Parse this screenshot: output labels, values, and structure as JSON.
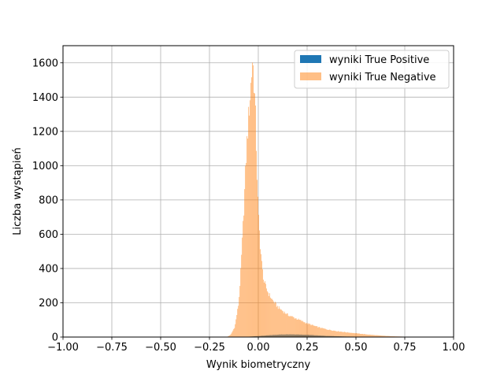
{
  "chart_data": {
    "type": "histogram",
    "xlabel": "Wynik biometryczny",
    "ylabel": "Liczba wystąpień",
    "xlim": [
      -1.0,
      1.0
    ],
    "ylim": [
      0,
      1700
    ],
    "x_ticks": [
      "−1.00",
      "−0.75",
      "−0.50",
      "−0.25",
      "0.00",
      "0.25",
      "0.50",
      "0.75",
      "1.00"
    ],
    "x_tick_values": [
      -1.0,
      -0.75,
      -0.5,
      -0.25,
      0.0,
      0.25,
      0.5,
      0.75,
      1.0
    ],
    "y_ticks": [
      "0",
      "200",
      "400",
      "600",
      "800",
      "1000",
      "1200",
      "1400",
      "1600"
    ],
    "y_tick_values": [
      0,
      200,
      400,
      600,
      800,
      1000,
      1200,
      1400,
      1600
    ],
    "grid": true,
    "legend_position": "top-right",
    "series": [
      {
        "name": "wyniki True Positive",
        "color": "#1f77b4",
        "opacity": 1.0,
        "x": [
          -0.1,
          -0.05,
          0.0,
          0.05,
          0.1,
          0.15,
          0.2,
          0.25,
          0.3,
          0.35,
          0.4,
          0.45,
          0.5,
          0.55,
          0.6
        ],
        "y": [
          0,
          2,
          6,
          10,
          14,
          16,
          15,
          13,
          10,
          7,
          5,
          3,
          2,
          1,
          0
        ]
      },
      {
        "name": "wyniki True Negative",
        "color": "#ff7f0e",
        "opacity": 0.5,
        "x": [
          -0.16,
          -0.14,
          -0.12,
          -0.1,
          -0.09,
          -0.08,
          -0.07,
          -0.06,
          -0.05,
          -0.04,
          -0.035,
          -0.03,
          -0.025,
          -0.02,
          -0.015,
          -0.01,
          -0.005,
          0.0,
          0.01,
          0.02,
          0.03,
          0.05,
          0.07,
          0.1,
          0.15,
          0.2,
          0.25,
          0.3,
          0.35,
          0.4,
          0.45,
          0.5,
          0.55,
          0.6,
          0.65,
          0.7,
          0.75,
          0.8
        ],
        "y": [
          0,
          15,
          60,
          200,
          380,
          600,
          850,
          1100,
          1280,
          1440,
          1520,
          1620,
          1560,
          1450,
          1320,
          1120,
          900,
          720,
          540,
          400,
          320,
          260,
          220,
          175,
          130,
          105,
          80,
          60,
          45,
          35,
          28,
          22,
          16,
          11,
          7,
          4,
          2,
          0
        ]
      }
    ]
  }
}
